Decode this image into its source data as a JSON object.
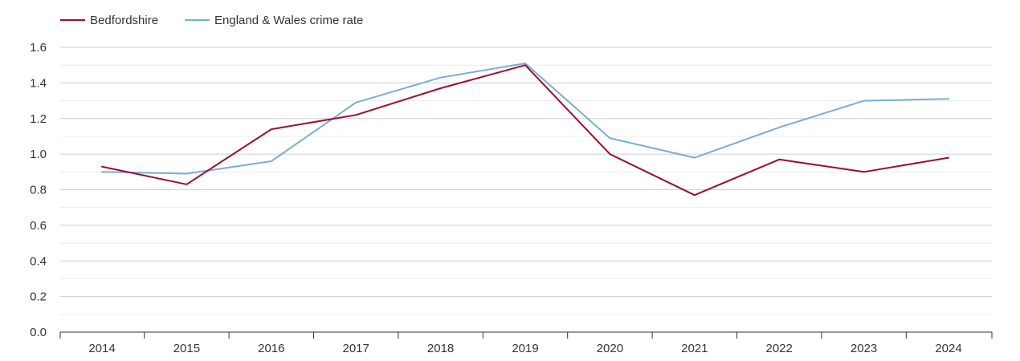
{
  "chart_data": {
    "type": "line",
    "categories": [
      "2014",
      "2015",
      "2016",
      "2017",
      "2018",
      "2019",
      "2020",
      "2021",
      "2022",
      "2023",
      "2024"
    ],
    "series": [
      {
        "name": "Bedfordshire",
        "color": "#9b0d32",
        "values": [
          0.93,
          0.83,
          1.14,
          1.22,
          1.37,
          1.5,
          1.0,
          0.77,
          0.97,
          0.9,
          0.98
        ]
      },
      {
        "name": "England & Wales crime rate",
        "color": "#7aaed0",
        "values": [
          0.9,
          0.89,
          0.96,
          1.29,
          1.43,
          1.51,
          1.09,
          0.98,
          1.15,
          1.3,
          1.31
        ]
      }
    ],
    "ylim": [
      0,
      1.6
    ],
    "yticks": [
      "0.0",
      "0.2",
      "0.4",
      "0.6",
      "0.8",
      "1.0",
      "1.2",
      "1.4",
      "1.6"
    ],
    "grid": true,
    "legend": "top-left"
  }
}
